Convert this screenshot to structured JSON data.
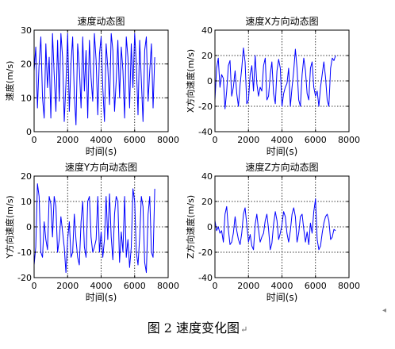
{
  "caption": {
    "text": "图 2  速度变化图",
    "mark": "↵"
  },
  "edge_mark": "◂",
  "chart_data": [
    {
      "type": "line",
      "title": "速度动态图",
      "xlabel": "时间(s)",
      "ylabel": "速度(m/s)",
      "xlim": [
        0,
        8000
      ],
      "ylim": [
        0,
        30
      ],
      "xticks": [
        0,
        2000,
        4000,
        6000,
        8000
      ],
      "yticks": [
        0,
        10,
        20,
        30
      ],
      "grid": "dotted",
      "color": "#0000ff",
      "x": [
        0,
        100,
        200,
        300,
        400,
        500,
        600,
        700,
        800,
        900,
        1000,
        1100,
        1200,
        1300,
        1400,
        1500,
        1600,
        1700,
        1800,
        1900,
        2000,
        2100,
        2200,
        2300,
        2400,
        2500,
        2600,
        2700,
        2800,
        2900,
        3000,
        3100,
        3200,
        3300,
        3400,
        3500,
        3600,
        3700,
        3800,
        3900,
        4000,
        4100,
        4200,
        4300,
        4400,
        4500,
        4600,
        4700,
        4800,
        4900,
        5000,
        5100,
        5200,
        5300,
        5400,
        5500,
        5600,
        5700,
        5800,
        5900,
        6000,
        6100,
        6200,
        6300,
        6400,
        6500,
        6600,
        6700,
        6800,
        6900,
        7000,
        7100,
        7200
      ],
      "series": [
        {
          "values": [
            18,
            25,
            7,
            20,
            28,
            10,
            4,
            26,
            13,
            22,
            4,
            29,
            17,
            6,
            27,
            9,
            29,
            22,
            3,
            14,
            29,
            6,
            20,
            28,
            11,
            2,
            26,
            19,
            7,
            28,
            12,
            24,
            4,
            27,
            16,
            9,
            29,
            21,
            5,
            23,
            28,
            13,
            3,
            26,
            19,
            8,
            29,
            24,
            6,
            15,
            27,
            10,
            25,
            18,
            4,
            28,
            22,
            7,
            26,
            13,
            29,
            20,
            5,
            27,
            15,
            3,
            24,
            28,
            9,
            18,
            26,
            7,
            22
          ]
        }
      ]
    },
    {
      "type": "line",
      "title": "速度X方向动态图",
      "xlabel": "时间(s)",
      "ylabel": "X方向速度(m/s)",
      "xlim": [
        0,
        8000
      ],
      "ylim": [
        -40,
        40
      ],
      "xticks": [
        0,
        2000,
        4000,
        6000,
        8000
      ],
      "yticks": [
        -40,
        -20,
        0,
        20,
        40
      ],
      "grid": "dotted",
      "color": "#0000ff",
      "x": [
        0,
        100,
        200,
        300,
        400,
        500,
        600,
        700,
        800,
        900,
        1000,
        1100,
        1200,
        1300,
        1400,
        1500,
        1600,
        1700,
        1800,
        1900,
        2000,
        2100,
        2200,
        2300,
        2400,
        2500,
        2600,
        2700,
        2800,
        2900,
        3000,
        3100,
        3200,
        3300,
        3400,
        3500,
        3600,
        3700,
        3800,
        3900,
        4000,
        4100,
        4200,
        4300,
        4400,
        4500,
        4600,
        4700,
        4800,
        4900,
        5000,
        5100,
        5200,
        5300,
        5400,
        5500,
        5600,
        5700,
        5800,
        5900,
        6000,
        6100,
        6200,
        6300,
        6400,
        6500,
        6600,
        6700,
        6800,
        6900,
        7000,
        7100,
        7200
      ],
      "series": [
        {
          "values": [
            -15,
            10,
            18,
            -5,
            5,
            2,
            -22,
            -8,
            12,
            16,
            -12,
            -5,
            8,
            -10,
            -20,
            -3,
            10,
            26,
            15,
            -18,
            -15,
            5,
            12,
            -8,
            20,
            -2,
            -12,
            -5,
            -8,
            12,
            18,
            -15,
            -12,
            5,
            15,
            -10,
            -18,
            8,
            17,
            10,
            -20,
            -10,
            -5,
            -2,
            10,
            -20,
            -5,
            8,
            25,
            10,
            -15,
            -20,
            5,
            18,
            8,
            -10,
            -15,
            10,
            15,
            -5,
            -12,
            -8,
            -20,
            -5,
            5,
            15,
            3,
            -15,
            -20,
            10,
            18,
            16,
            20
          ]
        }
      ]
    },
    {
      "type": "line",
      "title": "速度Y方向动态图",
      "xlabel": "时间(s)",
      "ylabel": "Y方向速度(m/s)",
      "xlim": [
        0,
        8000
      ],
      "ylim": [
        -20,
        20
      ],
      "xticks": [
        0,
        2000,
        4000,
        6000,
        8000
      ],
      "yticks": [
        -20,
        -10,
        0,
        10,
        20
      ],
      "grid": "dotted",
      "color": "#0000ff",
      "x": [
        0,
        100,
        200,
        300,
        400,
        500,
        600,
        700,
        800,
        900,
        1000,
        1100,
        1200,
        1300,
        1400,
        1500,
        1600,
        1700,
        1800,
        1900,
        2000,
        2100,
        2200,
        2300,
        2400,
        2500,
        2600,
        2700,
        2800,
        2900,
        3000,
        3100,
        3200,
        3300,
        3400,
        3500,
        3600,
        3700,
        3800,
        3900,
        4000,
        4100,
        4200,
        4300,
        4400,
        4500,
        4600,
        4700,
        4800,
        4900,
        5000,
        5100,
        5200,
        5300,
        5400,
        5500,
        5600,
        5700,
        5800,
        5900,
        6000,
        6100,
        6200,
        6300,
        6400,
        6500,
        6600,
        6700,
        6800,
        6900,
        7000,
        7100,
        7200
      ],
      "series": [
        {
          "values": [
            -15,
            -8,
            17,
            12,
            -10,
            -12,
            2,
            -5,
            -9,
            12,
            9,
            -4,
            12,
            8,
            -10,
            -5,
            4,
            -2,
            -8,
            -18,
            -5,
            2,
            -12,
            -10,
            5,
            -5,
            -12,
            -15,
            2,
            10,
            -8,
            -12,
            10,
            12,
            -4,
            -10,
            -8,
            -5,
            12,
            -10,
            -2,
            -12,
            -5,
            12,
            -5,
            13,
            -4,
            -13,
            5,
            12,
            10,
            -14,
            -2,
            -10,
            12,
            -12,
            -5,
            -16,
            -8,
            15,
            10,
            -10,
            -15,
            -4,
            12,
            8,
            -14,
            -18,
            5,
            12,
            -10,
            -12,
            15
          ]
        }
      ]
    },
    {
      "type": "line",
      "title": "速度Z方向动态图",
      "xlabel": "时间(s)",
      "ylabel": "Z方向速度(m/s)",
      "xlim": [
        0,
        8000
      ],
      "ylim": [
        -40,
        40
      ],
      "xticks": [
        0,
        2000,
        4000,
        6000,
        8000
      ],
      "yticks": [
        -40,
        -20,
        0,
        20,
        40
      ],
      "grid": "dotted",
      "color": "#0000ff",
      "x": [
        0,
        100,
        200,
        300,
        400,
        500,
        600,
        700,
        800,
        900,
        1000,
        1100,
        1200,
        1300,
        1400,
        1500,
        1600,
        1700,
        1800,
        1900,
        2000,
        2100,
        2200,
        2300,
        2400,
        2500,
        2600,
        2700,
        2800,
        2900,
        3000,
        3100,
        3200,
        3300,
        3400,
        3500,
        3600,
        3700,
        3800,
        3900,
        4000,
        4100,
        4200,
        4300,
        4400,
        4500,
        4600,
        4700,
        4800,
        4900,
        5000,
        5100,
        5200,
        5300,
        5400,
        5500,
        5600,
        5700,
        5800,
        5900,
        6000,
        6100,
        6200,
        6300,
        6400,
        6500,
        6600,
        6700,
        6800,
        6900,
        7000,
        7100,
        7200
      ],
      "series": [
        {
          "values": [
            5,
            -3,
            0,
            -5,
            -3,
            -12,
            10,
            16,
            -2,
            -14,
            -12,
            -5,
            8,
            -3,
            -10,
            -14,
            -5,
            10,
            15,
            2,
            -12,
            -6,
            -15,
            -18,
            2,
            10,
            -2,
            -12,
            -8,
            -5,
            5,
            10,
            -2,
            -18,
            -13,
            2,
            12,
            5,
            -10,
            -5,
            2,
            12,
            8,
            -5,
            -12,
            -3,
            10,
            15,
            8,
            -12,
            -5,
            8,
            10,
            -2,
            -12,
            -4,
            -14,
            3,
            -5,
            12,
            22,
            -10,
            -18,
            -15,
            -5,
            3,
            8,
            10,
            5,
            -10,
            -8,
            -2,
            -3
          ]
        }
      ]
    }
  ]
}
